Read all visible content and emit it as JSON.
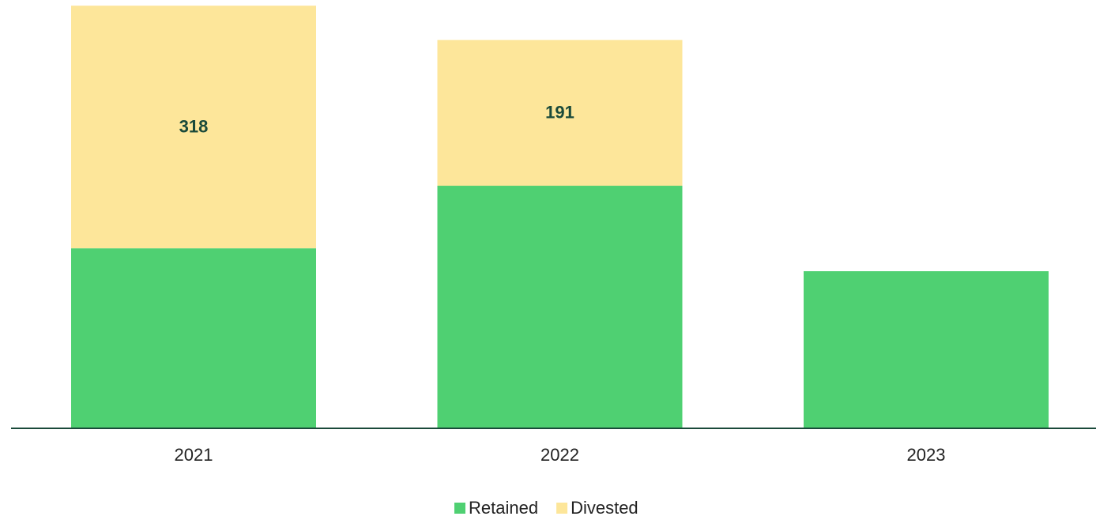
{
  "chart_data": {
    "type": "stacked_bar",
    "categories": [
      "2021",
      "2022",
      "2023"
    ],
    "series": [
      {
        "name": "Retained",
        "color": "#4fd072",
        "values": [
          236,
          318,
          206
        ]
      },
      {
        "name": "Divested",
        "color": "#fde69a",
        "values": [
          318,
          191,
          0
        ]
      }
    ],
    "ylim": [
      0,
      560
    ],
    "data_labels": [
      "Divested"
    ],
    "label_color": "#1a4a3a",
    "axis_color": "#1a4a3a",
    "legend": "bottom"
  }
}
